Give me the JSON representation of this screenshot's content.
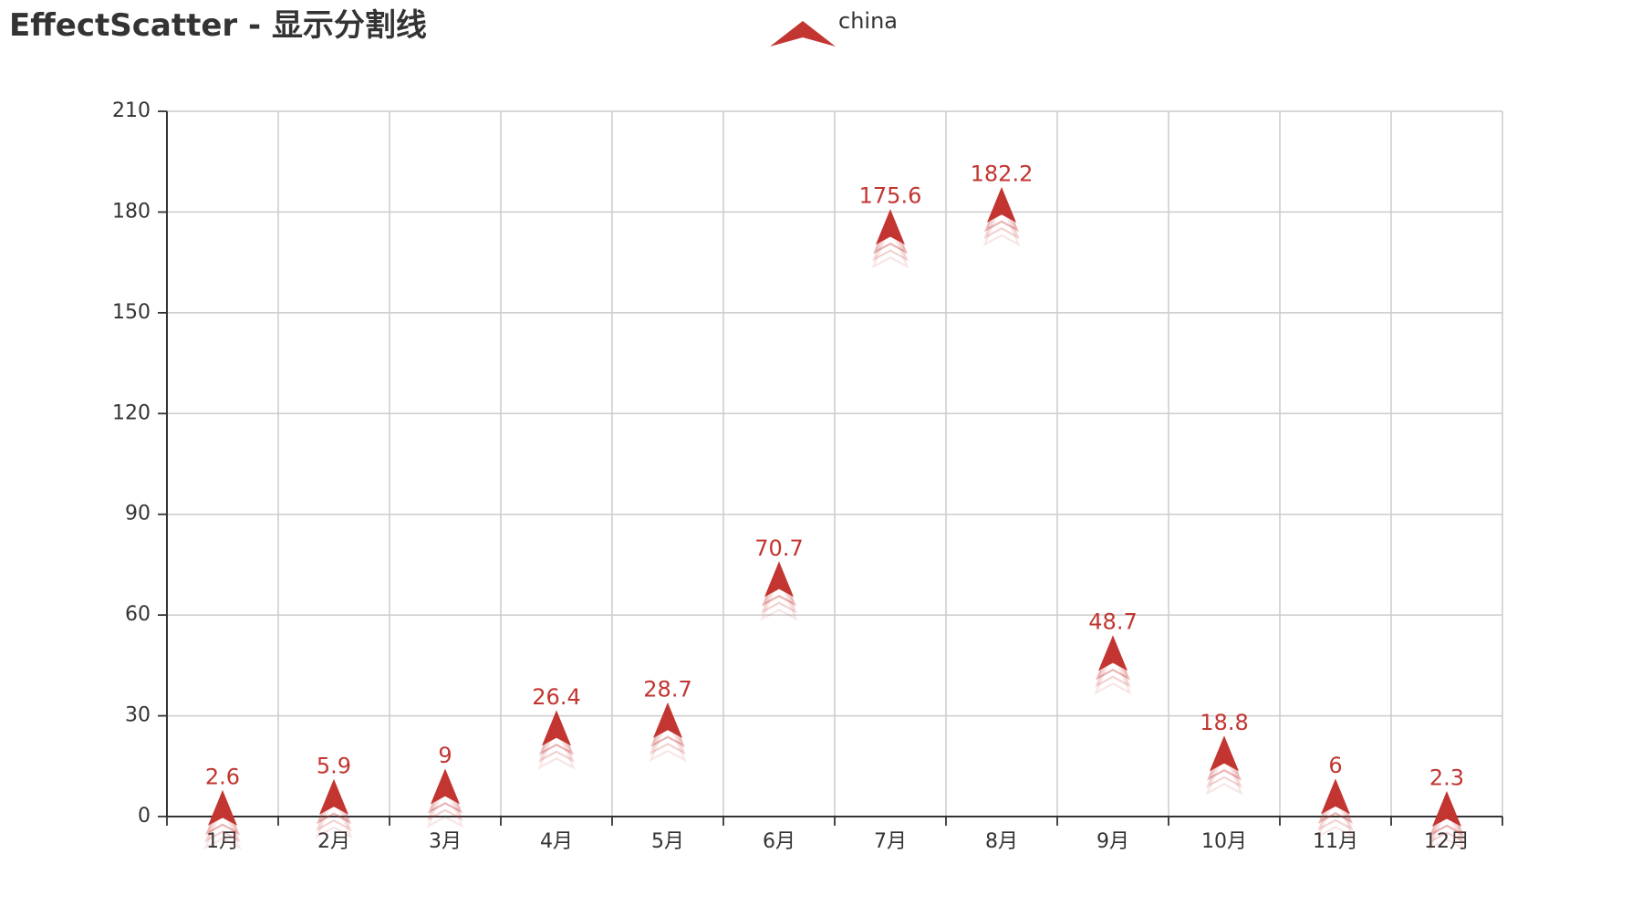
{
  "title": "EffectScatter - 显示分割线",
  "legend": {
    "items": [
      "china"
    ],
    "position": "top-center",
    "symbol": "arrow-icon"
  },
  "colors": {
    "series": "#c23531",
    "axis": "#333333",
    "grid": "#cccccc",
    "text": "#333333"
  },
  "chart_data": {
    "type": "scatter",
    "categories": [
      "1月",
      "2月",
      "3月",
      "4月",
      "5月",
      "6月",
      "7月",
      "8月",
      "9月",
      "10月",
      "11月",
      "12月"
    ],
    "series": [
      {
        "name": "china",
        "values": [
          2.6,
          5.9,
          9,
          26.4,
          28.7,
          70.7,
          175.6,
          182.2,
          48.7,
          18.8,
          6,
          2.3
        ]
      }
    ],
    "ylim": [
      0,
      210
    ],
    "yticks": [
      "0",
      "30",
      "60",
      "90",
      "120",
      "150",
      "180",
      "210"
    ],
    "grid": {
      "x": true,
      "y": true
    },
    "labels": "show"
  }
}
